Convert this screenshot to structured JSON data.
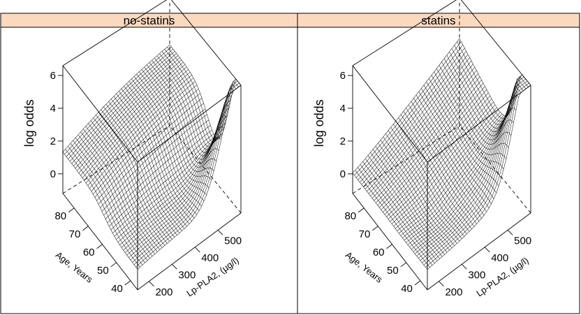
{
  "chart_data": [
    {
      "type": "surface",
      "panel": "no-statins",
      "strip_color": "#fbd9bf",
      "zlabel": "log odds",
      "xlabel": "Lp-PLA2, (µg/l)",
      "ylabel": "Age, Years",
      "zticks": [
        "0",
        "2",
        "4",
        "6"
      ],
      "xticks": [
        "200",
        "300",
        "400",
        "500"
      ],
      "yticks": [
        "40",
        "50",
        "60",
        "70",
        "80"
      ],
      "xlim": [
        150,
        600
      ],
      "ylim": [
        35,
        88
      ],
      "zlim": [
        -1.2,
        6.6
      ],
      "surface_shape": "peak at high Lp-PLA2 and low age (~6.5); trough near 0 at low Lp-PLA2; raised plateau (~3) at high age and high Lp-PLA2"
    },
    {
      "type": "surface",
      "panel": "statins",
      "strip_color": "#fbd9bf",
      "zlabel": "log odds",
      "xlabel": "Lp-PLA2, (µg/l)",
      "ylabel": "Age, Years",
      "zticks": [
        "0",
        "2",
        "4",
        "6"
      ],
      "xticks": [
        "200",
        "300",
        "400",
        "500"
      ],
      "yticks": [
        "40",
        "50",
        "60",
        "70",
        "80"
      ],
      "xlim": [
        150,
        600
      ],
      "ylim": [
        35,
        88
      ],
      "zlim": [
        -1.2,
        6.6
      ],
      "surface_shape": "peak at high Lp-PLA2 and low age (~6.5); near 0 at low Lp-PLA2; rising ridge toward high Lp-PLA2 and high age (~4)"
    }
  ]
}
